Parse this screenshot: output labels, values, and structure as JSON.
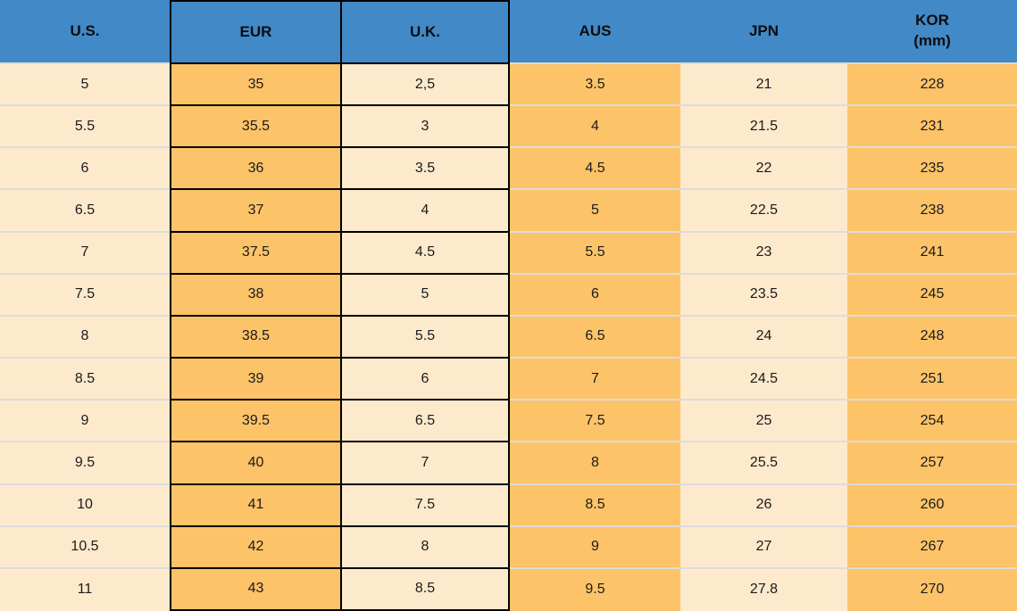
{
  "chart_data": {
    "type": "table",
    "columns": [
      "U.S.",
      "EUR",
      "U.K.",
      "AUS",
      "JPN",
      "KOR (mm)"
    ],
    "rows": [
      [
        "5",
        "35",
        "2,5",
        "3.5",
        "21",
        "228"
      ],
      [
        "5.5",
        "35.5",
        "3",
        "4",
        "21.5",
        "231"
      ],
      [
        "6",
        "36",
        "3.5",
        "4.5",
        "22",
        "235"
      ],
      [
        "6.5",
        "37",
        "4",
        "5",
        "22.5",
        "238"
      ],
      [
        "7",
        "37.5",
        "4.5",
        "5.5",
        "23",
        "241"
      ],
      [
        "7.5",
        "38",
        "5",
        "6",
        "23.5",
        "245"
      ],
      [
        "8",
        "38.5",
        "5.5",
        "6.5",
        "24",
        "248"
      ],
      [
        "8.5",
        "39",
        "6",
        "7",
        "24.5",
        "251"
      ],
      [
        "9",
        "39.5",
        "6.5",
        "7.5",
        "25",
        "254"
      ],
      [
        "9.5",
        "40",
        "7",
        "8",
        "25.5",
        "257"
      ],
      [
        "10",
        "41",
        "7.5",
        "8.5",
        "26",
        "260"
      ],
      [
        "10.5",
        "42",
        "8",
        "9",
        "27",
        "267"
      ],
      [
        "11",
        "43",
        "8.5",
        "9.5",
        "27.8",
        "270"
      ]
    ]
  },
  "header": {
    "us": "U.S.",
    "eur": "EUR",
    "uk": "U.K.",
    "aus": "AUS",
    "jpn": "JPN",
    "kor_line1": "KOR",
    "kor_line2": "(mm)"
  },
  "colors": {
    "header_bg": "#4289c7",
    "orange_cell": "#fdc368",
    "cream_cell": "#fde9cc",
    "row_separator": "#dcdcdc",
    "highlight_border": "#000000",
    "text": "#1b1b1b"
  }
}
